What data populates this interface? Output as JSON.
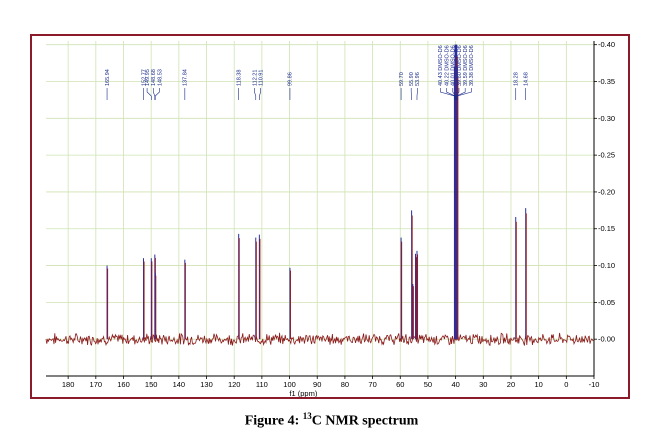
{
  "caption": {
    "prefix": "Figure 4: ",
    "superscript": "13",
    "suffix": "C NMR spectrum"
  },
  "colors": {
    "frame": "#8b1a2b",
    "grid": "#cfe3b2",
    "baseline": "#8b1a1a",
    "peak_blue": "#2b2f9c",
    "peak_red": "#a01818",
    "label": "#1a2a8a"
  },
  "chart_data": {
    "type": "line",
    "title": "",
    "xlabel": "f1 (ppm)",
    "ylabel": "",
    "xlim": [
      188,
      -10
    ],
    "x_reversed": true,
    "ylim": [
      -0.05,
      0.405
    ],
    "x_ticks": [
      180,
      170,
      160,
      150,
      140,
      130,
      120,
      110,
      100,
      90,
      80,
      70,
      60,
      50,
      40,
      30,
      20,
      10,
      0,
      -10
    ],
    "x_tick_labels": [
      "180",
      "170",
      "160",
      "150",
      "140",
      "130",
      "120",
      "110",
      "100",
      "90",
      "80",
      "70",
      "60",
      "50",
      "40",
      "30",
      "20",
      "10",
      "0",
      "-10"
    ],
    "y_ticks": [
      0.0,
      0.05,
      0.1,
      0.15,
      0.2,
      0.25,
      0.3,
      0.35,
      0.4
    ],
    "y_tick_labels": [
      "-0.00",
      "-0.05",
      "-0.10",
      "-0.15",
      "-0.20",
      "-0.25",
      "-0.30",
      "-0.35",
      "-0.40"
    ],
    "y_axis_side": "right",
    "grid": true,
    "peaks": [
      {
        "ppm": 165.94,
        "height": 0.1
      },
      {
        "ppm": 152.77,
        "height": 0.11
      },
      {
        "ppm": 149.95,
        "height": 0.11
      },
      {
        "ppm": 148.68,
        "height": 0.115
      },
      {
        "ppm": 148.53,
        "height": 0.09
      },
      {
        "ppm": 137.84,
        "height": 0.108
      },
      {
        "ppm": 118.38,
        "height": 0.143
      },
      {
        "ppm": 112.21,
        "height": 0.138
      },
      {
        "ppm": 110.91,
        "height": 0.142
      },
      {
        "ppm": 99.86,
        "height": 0.097
      },
      {
        "ppm": 59.7,
        "height": 0.138
      },
      {
        "ppm": 55.9,
        "height": 0.175
      },
      {
        "ppm": 55.46,
        "height": 0.075
      },
      {
        "ppm": 54.5,
        "height": 0.116
      },
      {
        "ppm": 53.96,
        "height": 0.12
      },
      {
        "ppm": 40.43,
        "height": 0.37
      },
      {
        "ppm": 40.22,
        "height": 0.4
      },
      {
        "ppm": 40.01,
        "height": 0.4
      },
      {
        "ppm": 39.8,
        "height": 0.4
      },
      {
        "ppm": 39.59,
        "height": 0.4
      },
      {
        "ppm": 39.38,
        "height": 0.37
      },
      {
        "ppm": 18.28,
        "height": 0.166
      },
      {
        "ppm": 14.68,
        "height": 0.178
      }
    ],
    "peak_labels": [
      {
        "ppm": 165.94,
        "text": "165.94"
      },
      {
        "ppm": 152.77,
        "text": "152.77"
      },
      {
        "ppm": 149.95,
        "text": "149.95"
      },
      {
        "ppm": 148.68,
        "text": "148.68"
      },
      {
        "ppm": 148.53,
        "text": "148.53"
      },
      {
        "ppm": 137.84,
        "text": "137.84"
      },
      {
        "ppm": 118.38,
        "text": "118.38"
      },
      {
        "ppm": 112.21,
        "text": "112.21"
      },
      {
        "ppm": 110.91,
        "text": "110.91"
      },
      {
        "ppm": 99.86,
        "text": "99.86"
      },
      {
        "ppm": 59.7,
        "text": "59.70"
      },
      {
        "ppm": 55.9,
        "text": "55.90"
      },
      {
        "ppm": 53.96,
        "text": "53.96"
      },
      {
        "ppm": 40.43,
        "text": "40.43 DMSO-D6"
      },
      {
        "ppm": 40.22,
        "text": "40.22 DMSO-D6"
      },
      {
        "ppm": 40.01,
        "text": "40.01 DMSO-D6"
      },
      {
        "ppm": 39.8,
        "text": "39.80 DMSO-D6"
      },
      {
        "ppm": 39.59,
        "text": "39.59 DMSO-D6"
      },
      {
        "ppm": 39.38,
        "text": "39.38 DMSO-D6"
      },
      {
        "ppm": 18.28,
        "text": "18.28"
      },
      {
        "ppm": 14.68,
        "text": "14.68"
      }
    ]
  }
}
